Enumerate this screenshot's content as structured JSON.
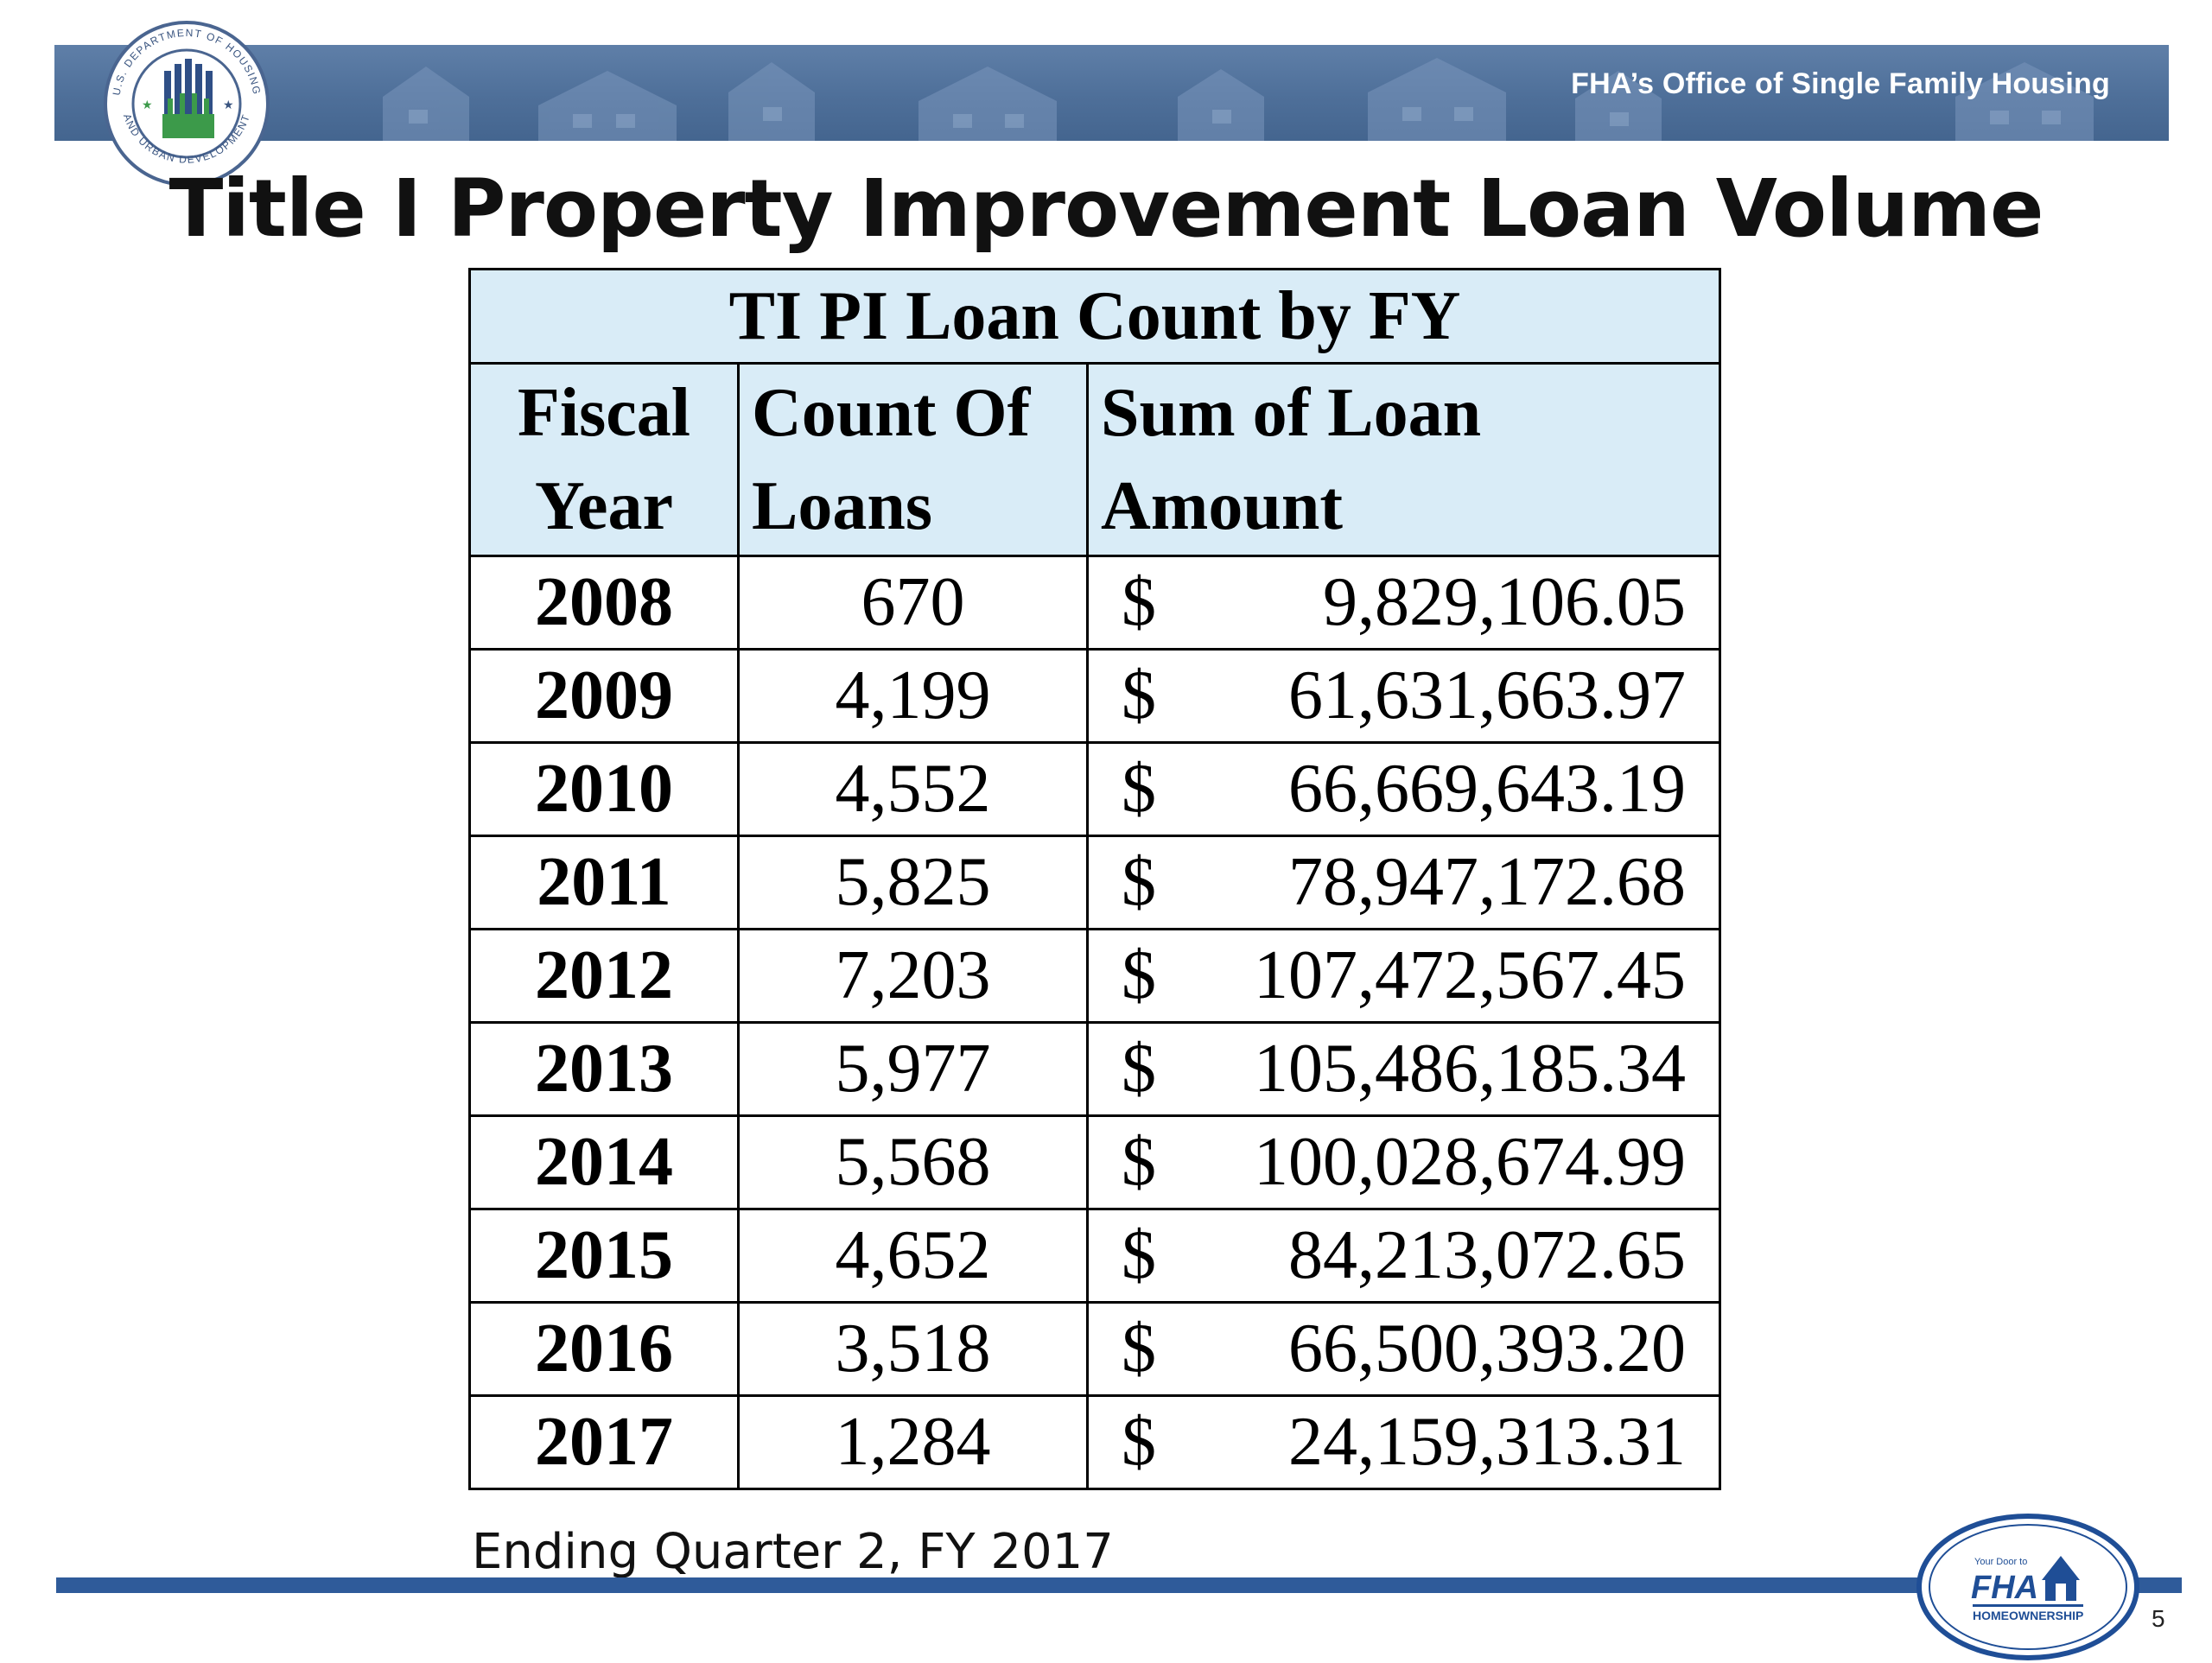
{
  "header": {
    "office": "FHA’s Office of Single Family Housing",
    "seal_icon": "hud-seal-icon",
    "seal_text_top": "U.S. DEPARTMENT OF HOUSING",
    "seal_text_bottom": "AND URBAN DEVELOPMENT"
  },
  "slide": {
    "title": "Title I Property Improvement Loan Volume",
    "page_number": "5"
  },
  "table": {
    "caption": "TI PI Loan Count by FY",
    "headers": {
      "fiscal_line1": "Fiscal",
      "fiscal_line2": "Year",
      "count_line1": "Count Of",
      "count_line2": "Loans",
      "sum_line1": "Sum of Loan",
      "sum_line2": "Amount"
    },
    "rows": [
      {
        "year": "2008",
        "count": "670",
        "currency": "$",
        "amount": "9,829,106.05"
      },
      {
        "year": "2009",
        "count": "4,199",
        "currency": "$",
        "amount": "61,631,663.97"
      },
      {
        "year": "2010",
        "count": "4,552",
        "currency": "$",
        "amount": "66,669,643.19"
      },
      {
        "year": "2011",
        "count": "5,825",
        "currency": "$",
        "amount": "78,947,172.68"
      },
      {
        "year": "2012",
        "count": "7,203",
        "currency": "$",
        "amount": "107,472,567.45"
      },
      {
        "year": "2013",
        "count": "5,977",
        "currency": "$",
        "amount": "105,486,185.34"
      },
      {
        "year": "2014",
        "count": "5,568",
        "currency": "$",
        "amount": "100,028,674.99"
      },
      {
        "year": "2015",
        "count": "4,652",
        "currency": "$",
        "amount": "84,213,072.65"
      },
      {
        "year": "2016",
        "count": "3,518",
        "currency": "$",
        "amount": "66,500,393.20"
      },
      {
        "year": "2017",
        "count": "1,284",
        "currency": "$",
        "amount": "24,159,313.31"
      }
    ]
  },
  "footnote": "Ending Quarter 2, FY 2017",
  "logo": {
    "icon": "fha-homeownership-logo-icon",
    "tagline": "Your Door to",
    "brand": "FHA",
    "subtitle": "HOMEOWNERSHIP"
  },
  "colors": {
    "banner": "#4e6f99",
    "table_header_bg": "#d9ecf7",
    "rule": "#2f5b9a"
  }
}
